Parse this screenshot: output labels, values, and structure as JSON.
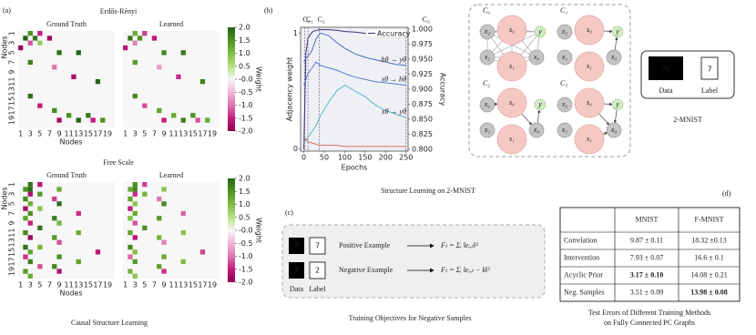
{
  "panel_a": {
    "label": "(a)",
    "caption": "Causal Structure Learning",
    "xlabel": "Nodes",
    "ylabel": "Nodes",
    "lim": [
      0.5,
      20.5
    ],
    "ticks": [
      1,
      3,
      5,
      7,
      9,
      11,
      13,
      15,
      17,
      19
    ],
    "colorbar": {
      "label": "Weight",
      "vlim": [
        -2,
        2
      ],
      "colormap": [
        "#8e0152",
        "#c51b7d",
        "#de77ae",
        "#f1b6da",
        "#f7f7f7",
        "#b8e186",
        "#7fbc41",
        "#4d9221",
        "#276419"
      ],
      "ticks": [
        {
          "value": 2,
          "label": "2.0"
        },
        1.5,
        {
          "value": 1,
          "label": "1.0"
        },
        0.5,
        {
          "value": 0,
          "label": "-0.0"
        },
        -0.5,
        {
          "value": -1,
          "label": "-1.0"
        },
        -1.5,
        {
          "value": -2,
          "label": "-2.0"
        }
      ]
    },
    "groups": [
      {
        "title": "Erdős-Rényi",
        "maps": [
          {
            "title": "Ground Truth",
            "cells": [
              [
                1,
                3,
                1.5
              ],
              [
                1,
                5,
                -1.5
              ],
              [
                2,
                2,
                2
              ],
              [
                2,
                4,
                1.8
              ],
              [
                2,
                7,
                -1.8
              ],
              [
                3,
                3,
                -1.2
              ],
              [
                3,
                5,
                0.8
              ],
              [
                4,
                1,
                -1.9
              ],
              [
                5,
                9,
                1.9
              ],
              [
                5,
                13,
                2
              ],
              [
                7,
                3,
                1.7
              ],
              [
                8,
                8,
                -1
              ],
              [
                10,
                12,
                -1.7
              ],
              [
                11,
                17,
                2
              ],
              [
                14,
                3,
                1.9
              ],
              [
                16,
                5,
                -1.5
              ],
              [
                17,
                8,
                1.6
              ],
              [
                18,
                11,
                1.5
              ],
              [
                18,
                15,
                1.8
              ],
              [
                19,
                9,
                -1.8
              ],
              [
                19,
                13,
                2
              ],
              [
                19,
                16,
                -1.5
              ],
              [
                19,
                18,
                1.5
              ]
            ]
          },
          {
            "title": "Learned",
            "cells": [
              [
                1,
                3,
                1.2
              ],
              [
                1,
                5,
                -1.3
              ],
              [
                2,
                2,
                1.8
              ],
              [
                2,
                4,
                1.5
              ],
              [
                2,
                7,
                -1.5
              ],
              [
                3,
                3,
                -0.9
              ],
              [
                4,
                1,
                -1.6
              ],
              [
                5,
                9,
                1.6
              ],
              [
                5,
                13,
                1.8
              ],
              [
                7,
                3,
                1.4
              ],
              [
                8,
                8,
                -0.7
              ],
              [
                10,
                12,
                -1.4
              ],
              [
                11,
                17,
                1.7
              ],
              [
                14,
                3,
                1.6
              ],
              [
                16,
                5,
                -1.2
              ],
              [
                17,
                8,
                1.3
              ],
              [
                18,
                11,
                1.2
              ],
              [
                18,
                15,
                1.5
              ],
              [
                19,
                9,
                -1.5
              ],
              [
                19,
                13,
                1.7
              ],
              [
                19,
                16,
                -1.2
              ],
              [
                19,
                18,
                1.2
              ]
            ]
          }
        ]
      },
      {
        "title": "Free Scale",
        "maps": [
          {
            "title": "Ground Truth",
            "cells": [
              [
                1,
                3,
                1.8
              ],
              [
                1,
                5,
                -1.6
              ],
              [
                2,
                2,
                1.5
              ],
              [
                2,
                3,
                1.9
              ],
              [
                2,
                9,
                1.2
              ],
              [
                3,
                3,
                -1.7
              ],
              [
                3,
                5,
                1.4
              ],
              [
                4,
                2,
                1.6
              ],
              [
                4,
                8,
                -1.3
              ],
              [
                5,
                3,
                1.2
              ],
              [
                5,
                9,
                1.9
              ],
              [
                6,
                2,
                -1.8
              ],
              [
                6,
                5,
                0.9
              ],
              [
                7,
                3,
                1.5
              ],
              [
                7,
                13,
                -1.4
              ],
              [
                8,
                2,
                1.3
              ],
              [
                8,
                8,
                1.7
              ],
              [
                9,
                3,
                -1.5
              ],
              [
                9,
                9,
                1.1
              ],
              [
                10,
                5,
                1.8
              ],
              [
                11,
                2,
                1.6
              ],
              [
                11,
                13,
                1.2
              ],
              [
                12,
                3,
                -1.9
              ],
              [
                12,
                8,
                1.4
              ],
              [
                13,
                9,
                -1.2
              ],
              [
                14,
                2,
                1.9
              ],
              [
                14,
                5,
                1.1
              ],
              [
                15,
                3,
                1.3
              ],
              [
                15,
                17,
                -1.6
              ],
              [
                16,
                2,
                -1.4
              ],
              [
                16,
                9,
                1.5
              ],
              [
                17,
                3,
                1.7
              ],
              [
                17,
                13,
                1.3
              ],
              [
                18,
                5,
                -1.2
              ],
              [
                18,
                8,
                1.6
              ],
              [
                19,
                2,
                1.4
              ],
              [
                19,
                9,
                -1.7
              ],
              [
                20,
                3,
                1.2
              ]
            ]
          },
          {
            "title": "Learned",
            "cells": [
              [
                1,
                3,
                1.5
              ],
              [
                1,
                5,
                -1.3
              ],
              [
                2,
                2,
                1.2
              ],
              [
                2,
                3,
                1.6
              ],
              [
                2,
                9,
                0.9
              ],
              [
                3,
                3,
                -1.4
              ],
              [
                3,
                5,
                1.1
              ],
              [
                4,
                2,
                1.3
              ],
              [
                4,
                8,
                -1
              ],
              [
                5,
                3,
                0.9
              ],
              [
                5,
                9,
                1.6
              ],
              [
                6,
                2,
                -1.5
              ],
              [
                7,
                3,
                1.2
              ],
              [
                7,
                13,
                -1.1
              ],
              [
                8,
                2,
                1
              ],
              [
                8,
                8,
                1.4
              ],
              [
                9,
                3,
                -1.2
              ],
              [
                10,
                5,
                1.5
              ],
              [
                11,
                2,
                1.3
              ],
              [
                11,
                13,
                0.9
              ],
              [
                12,
                3,
                -1.6
              ],
              [
                12,
                8,
                1.1
              ],
              [
                13,
                9,
                -0.9
              ],
              [
                14,
                2,
                1.6
              ],
              [
                15,
                3,
                1
              ],
              [
                15,
                17,
                -1.3
              ],
              [
                16,
                2,
                -1.1
              ],
              [
                16,
                9,
                1.2
              ],
              [
                17,
                3,
                1.4
              ],
              [
                17,
                13,
                1
              ],
              [
                18,
                8,
                1.3
              ],
              [
                19,
                2,
                1.1
              ],
              [
                19,
                9,
                -1.4
              ],
              [
                20,
                3,
                0.9
              ]
            ]
          }
        ]
      }
    ]
  },
  "panel_b": {
    "label": "(b)",
    "caption": "Structure Learning on 2-MNIST",
    "chart": {
      "type": "line",
      "xlabel": "Epochs",
      "ylabel": "Adjacency weight",
      "y2label": "Accuracy",
      "x": [
        0,
        5,
        10,
        20,
        30,
        40,
        60,
        80,
        100,
        125,
        150,
        175,
        200,
        225,
        250
      ],
      "xlim": [
        -8,
        255
      ],
      "xticks": [
        0,
        50,
        100,
        150,
        200,
        250
      ],
      "ylim": [
        -0.02,
        1.05
      ],
      "yticks": [
        0,
        1
      ],
      "y2lim": [
        0.797,
        1.003
      ],
      "y2ticks": [
        {
          "value": 0.8,
          "label": "0.800"
        },
        {
          "value": 0.825,
          "label": "0.825"
        },
        {
          "value": 0.85,
          "label": "0.850"
        },
        {
          "value": 0.875,
          "label": "0.875"
        },
        {
          "value": 0.9,
          "label": "0.900"
        },
        {
          "value": 0.925,
          "label": "0.925"
        },
        {
          "value": 0.95,
          "label": "0.950"
        },
        {
          "value": 0.975,
          "label": "0.975"
        },
        {
          "value": 1,
          "label": "1.000"
        }
      ],
      "series": [
        {
          "name": "Accuracy",
          "color": "#3b2c7a",
          "axis": "y2",
          "name_placement": "legend",
          "values": [
            0.8,
            0.96,
            0.985,
            0.995,
            0.998,
            0.999,
            0.999,
            0.998,
            0.996,
            0.995,
            0.993,
            0.992,
            0.991,
            0.99,
            0.99
          ]
        },
        {
          "name": "hθ → yθ",
          "color": "#4b6cb7",
          "name_placement": "end",
          "values": [
            0.75,
            0.78,
            0.8,
            0.85,
            0.95,
            1,
            0.98,
            0.92,
            0.87,
            0.82,
            0.79,
            0.77,
            0.75,
            0.73,
            0.72
          ]
        },
        {
          "name": "xθ → hθ",
          "color": "#5a7fc8",
          "name_placement": "end",
          "values": [
            0.55,
            0.6,
            0.65,
            0.7,
            0.75,
            0.72,
            0.7,
            0.68,
            0.65,
            0.62,
            0.6,
            0.58,
            0.57,
            0.56,
            0.55
          ]
        },
        {
          "name": "xθ → yθ",
          "color": "#5bb8c9",
          "name_placement": "end",
          "values": [
            0.05,
            0.08,
            0.1,
            0.15,
            0.2,
            0.28,
            0.4,
            0.5,
            0.55,
            0.5,
            0.45,
            0.38,
            0.33,
            0.3,
            0.27
          ]
        },
        {
          "color": "#d9735f",
          "values": [
            0.1,
            0.08,
            0.06,
            0.05,
            0.04,
            0.03,
            0.03,
            0.03,
            0.02,
            0.02,
            0.02,
            0.02,
            0.02,
            0.02,
            0.02
          ]
        }
      ],
      "phases": [
        {
          "label": "C₀",
          "x": 2
        },
        {
          "label": "C₁",
          "x": 10
        },
        {
          "label": "C₂",
          "x": 38
        },
        {
          "label": "C₃",
          "x": 250
        }
      ]
    },
    "diagram": {
      "clusters": [
        {
          "label": "C₀",
          "nodes": [
            "s₀",
            "s₁",
            "y",
            "x₀",
            "x₁",
            "x₂"
          ]
        },
        {
          "label": "C₁",
          "nodes": [
            "s₀",
            "s₁",
            "y",
            "x₀",
            "x₁",
            "x₂"
          ]
        },
        {
          "label": "C₂",
          "nodes": [
            "s₀",
            "s₁",
            "y",
            "x₀",
            "x₁",
            "x₂"
          ]
        },
        {
          "label": "C₃",
          "nodes": [
            "s₀",
            "s₁",
            "y",
            "x₀",
            "x₁",
            "x₂"
          ]
        }
      ]
    },
    "mnist": {
      "image_text": "74",
      "label_text": "7",
      "data_caption": "Data",
      "label_caption": "Label",
      "title": "2-MNIST"
    }
  },
  "panel_c": {
    "label": "(c)",
    "caption": "Training Objectives for Negative Samples",
    "data_caption": "Data",
    "label_caption": "Label",
    "rows": [
      {
        "data": "7",
        "label": "7",
        "name": "Positive Example",
        "formula": "Fₜ = Σᵢ ‖eᵢ,ₜ‖²"
      },
      {
        "data": "7",
        "label": "2",
        "name": "Negative Example",
        "formula": "Fₜ = Σᵢ ‖eᵢ,ₜ − k‖²"
      }
    ]
  },
  "panel_d": {
    "label": "(d)",
    "columns": [
      "MNIST",
      "F-MNIST"
    ],
    "rows": [
      {
        "name": "Correlation",
        "cells": [
          {
            "text": "9.87 ± 0.11"
          },
          {
            "text": "18.32 ±0.13"
          }
        ]
      },
      {
        "name": "Intervention",
        "cells": [
          {
            "text": "7.93 ± 0.07"
          },
          {
            "text": "16.6 ± 0.1"
          }
        ]
      },
      {
        "name": "Acyclic Prior",
        "cells": [
          {
            "text": "3.17 ± 0.10",
            "bold": true
          },
          {
            "text": "14.08 ± 0.21"
          }
        ]
      },
      {
        "name": "Neg. Samples",
        "cells": [
          {
            "text": "3.51 ± 0.09"
          },
          {
            "text": "13.98 ± 0.08",
            "bold": true
          }
        ]
      }
    ],
    "caption": [
      "Test Errors of Different Training Methods",
      "on Fully Connected PC Graphs"
    ]
  }
}
